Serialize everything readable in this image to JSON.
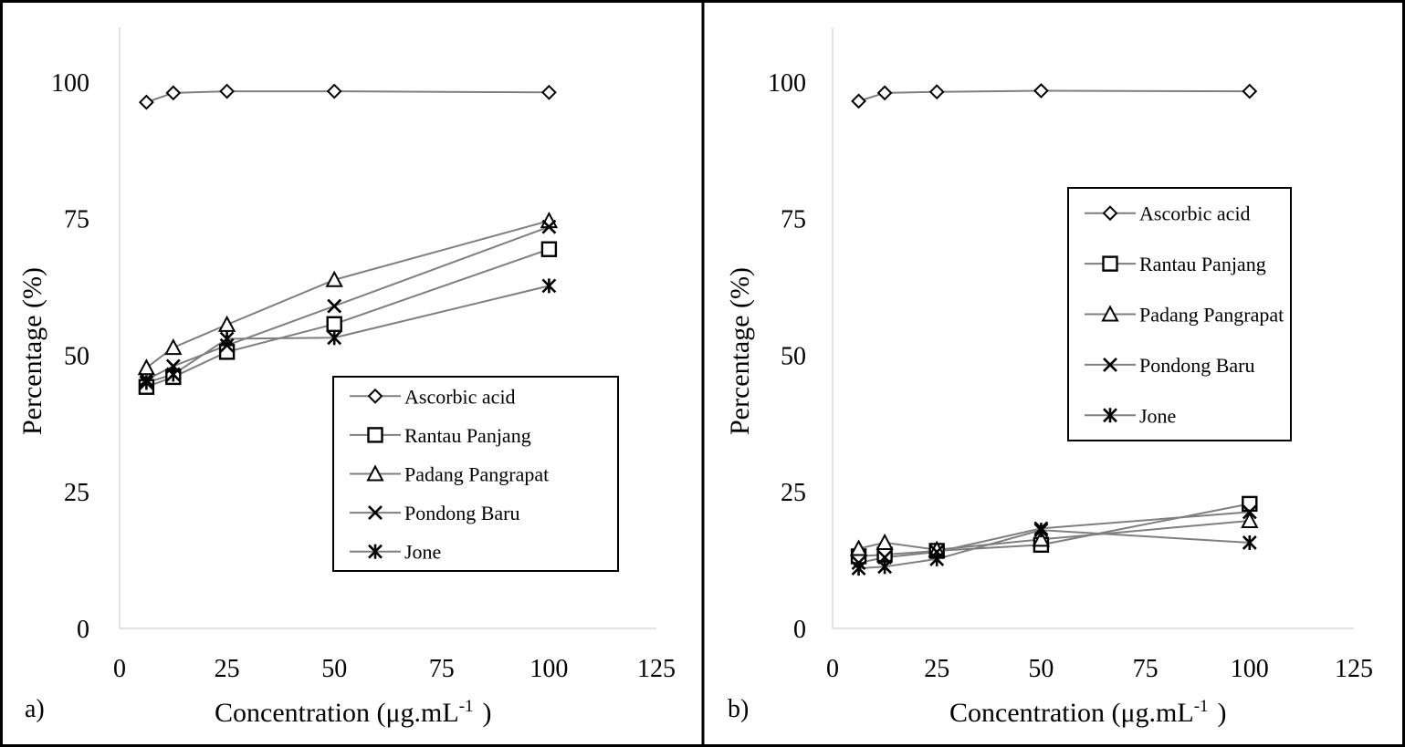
{
  "chart_data": [
    {
      "type": "line",
      "panel_label": "a)",
      "xlabel": "Concentration",
      "xunit_base": "(μg.mL",
      "xunit_sup": "-1",
      "xunit_close": ")",
      "ylabel": "Percentage  (%)",
      "xlim": [
        0,
        125
      ],
      "ylim": [
        0,
        110
      ],
      "xticks": [
        0,
        25,
        50,
        75,
        100,
        125
      ],
      "yticks": [
        0,
        25,
        50,
        75,
        100
      ],
      "grid": false,
      "legend_position": "lower-right",
      "series": [
        {
          "name": "Ascorbic acid",
          "marker": "diamond",
          "x": [
            6.25,
            12.5,
            25,
            50,
            100
          ],
          "y": [
            96.3,
            98.0,
            98.3,
            98.3,
            98.1
          ]
        },
        {
          "name": "Rantau Panjang",
          "marker": "square",
          "x": [
            6.25,
            12.5,
            25,
            50,
            100
          ],
          "y": [
            44.2,
            46.0,
            50.6,
            55.7,
            69.4
          ]
        },
        {
          "name": "Padang Pangrapat",
          "marker": "triangle",
          "x": [
            6.25,
            12.5,
            25,
            50,
            100
          ],
          "y": [
            47.7,
            51.4,
            55.6,
            63.8,
            74.6
          ]
        },
        {
          "name": "Pondong Baru",
          "marker": "x",
          "x": [
            6.25,
            12.5,
            25,
            50,
            100
          ],
          "y": [
            45.5,
            48.0,
            51.8,
            59.0,
            73.5
          ]
        },
        {
          "name": "Jone",
          "marker": "star",
          "x": [
            6.25,
            12.5,
            25,
            50,
            100
          ],
          "y": [
            45.0,
            46.5,
            53.0,
            53.2,
            62.7
          ]
        }
      ]
    },
    {
      "type": "line",
      "panel_label": "b)",
      "xlabel": "Concentration",
      "xunit_base": "(μg.mL",
      "xunit_sup": "-1",
      "xunit_close": ")",
      "ylabel": "Percentage  (%)",
      "xlim": [
        0,
        125
      ],
      "ylim": [
        0,
        110
      ],
      "xticks": [
        0,
        25,
        50,
        75,
        100,
        125
      ],
      "yticks": [
        0,
        25,
        50,
        75,
        100
      ],
      "grid": false,
      "legend_position": "upper-right",
      "series": [
        {
          "name": "Ascorbic acid",
          "marker": "diamond",
          "x": [
            6.25,
            12.5,
            25,
            50,
            100
          ],
          "y": [
            96.5,
            98.0,
            98.2,
            98.4,
            98.3
          ]
        },
        {
          "name": "Rantau Panjang",
          "marker": "square",
          "x": [
            6.25,
            12.5,
            25,
            50,
            100
          ],
          "y": [
            13.2,
            13.5,
            14.2,
            15.3,
            22.8
          ]
        },
        {
          "name": "Padang Pangrapat",
          "marker": "triangle",
          "x": [
            6.25,
            12.5,
            25,
            50,
            100
          ],
          "y": [
            14.6,
            15.7,
            14.4,
            16.3,
            19.7
          ]
        },
        {
          "name": "Pondong Baru",
          "marker": "x",
          "x": [
            6.25,
            12.5,
            25,
            50,
            100
          ],
          "y": [
            12.0,
            13.0,
            14.0,
            18.3,
            21.3
          ]
        },
        {
          "name": "Jone",
          "marker": "star",
          "x": [
            6.25,
            12.5,
            25,
            50,
            100
          ],
          "y": [
            11.0,
            11.3,
            12.7,
            18.0,
            15.7
          ]
        }
      ]
    }
  ]
}
